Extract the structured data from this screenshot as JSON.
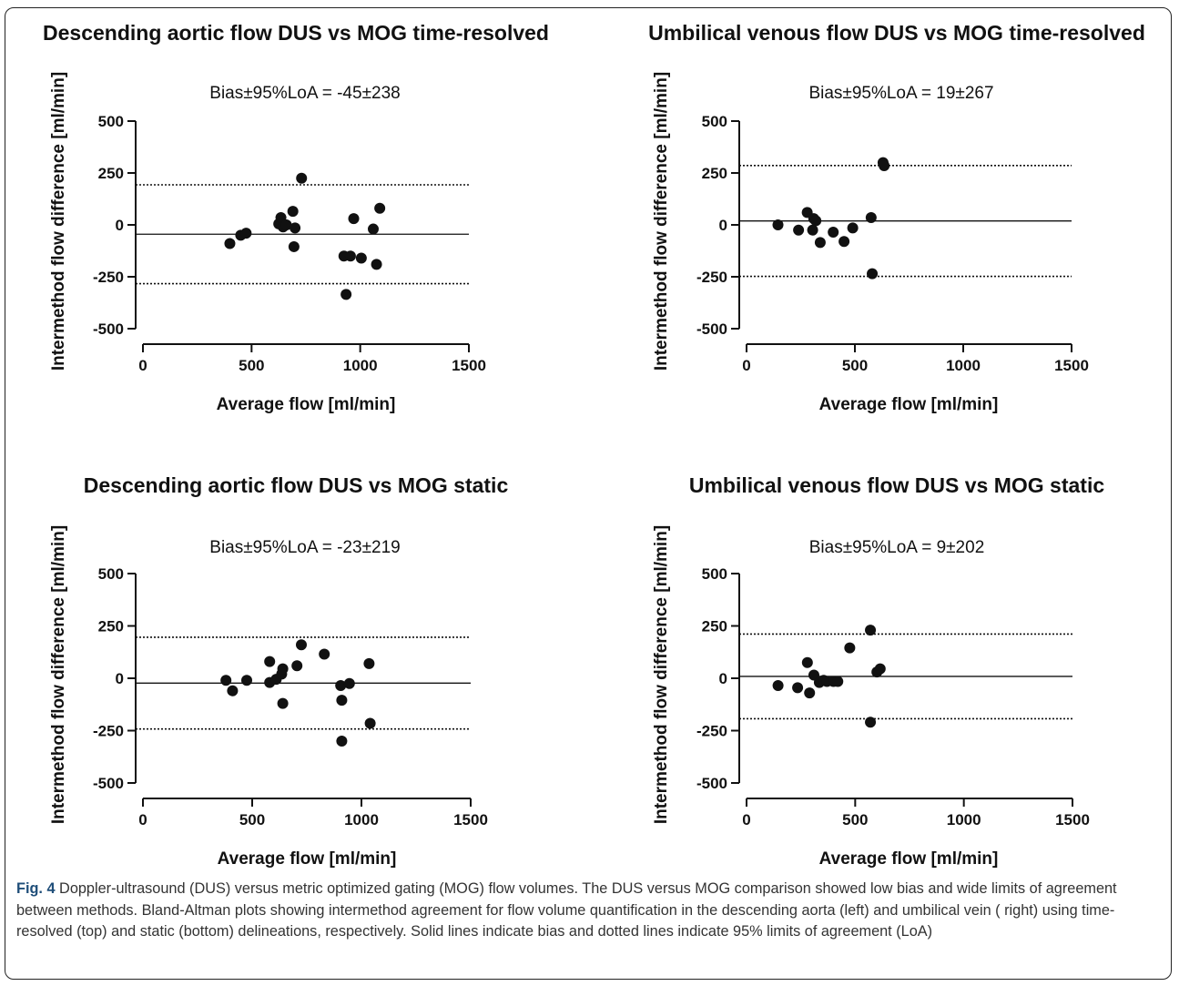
{
  "chart_data": [
    {
      "type": "scatter",
      "title": "Descending aortic flow DUS vs MOG time-resolved",
      "annotation": "Bias±95%LoA = -45±238",
      "xlabel": "Average flow [ml/min]",
      "ylabel": "Intermethod flow difference [ml/min]",
      "xlim": [
        0,
        1500
      ],
      "ylim": [
        -500,
        500
      ],
      "xticks": [
        "0",
        "500",
        "1000",
        "1500"
      ],
      "yticks": [
        "500",
        "250",
        "0",
        "-250",
        "-500"
      ],
      "bias": -45,
      "loa_upper": 193,
      "loa_lower": -283,
      "points": [
        [
          400,
          -90
        ],
        [
          450,
          -50
        ],
        [
          475,
          -40
        ],
        [
          625,
          5
        ],
        [
          635,
          35
        ],
        [
          645,
          -10
        ],
        [
          660,
          0
        ],
        [
          690,
          65
        ],
        [
          695,
          -105
        ],
        [
          700,
          -15
        ],
        [
          730,
          225
        ],
        [
          925,
          -150
        ],
        [
          935,
          -335
        ],
        [
          955,
          -150
        ],
        [
          970,
          30
        ],
        [
          1005,
          -160
        ],
        [
          1060,
          -20
        ],
        [
          1075,
          -190
        ],
        [
          1090,
          80
        ]
      ]
    },
    {
      "type": "scatter",
      "title": "Umbilical venous flow DUS vs MOG time-resolved",
      "annotation": "Bias±95%LoA = 19±267",
      "xlabel": "Average flow [ml/min]",
      "ylabel": "Intermethod flow difference [ml/min]",
      "xlim": [
        0,
        1500
      ],
      "ylim": [
        -500,
        500
      ],
      "xticks": [
        "0",
        "500",
        "1000",
        "1500"
      ],
      "yticks": [
        "500",
        "250",
        "0",
        "-250",
        "-500"
      ],
      "bias": 19,
      "loa_upper": 286,
      "loa_lower": -248,
      "points": [
        [
          145,
          0
        ],
        [
          240,
          -25
        ],
        [
          280,
          60
        ],
        [
          305,
          -25
        ],
        [
          310,
          30
        ],
        [
          320,
          20
        ],
        [
          340,
          -85
        ],
        [
          400,
          -35
        ],
        [
          450,
          -80
        ],
        [
          490,
          -15
        ],
        [
          575,
          35
        ],
        [
          580,
          -235
        ],
        [
          630,
          300
        ],
        [
          635,
          285
        ]
      ]
    },
    {
      "type": "scatter",
      "title": "Descending aortic flow DUS vs MOG static",
      "annotation": "Bias±95%LoA = -23±219",
      "xlabel": "Average flow [ml/min]",
      "ylabel": "Intermethod flow difference [ml/min]",
      "xlim": [
        0,
        1500
      ],
      "ylim": [
        -500,
        500
      ],
      "xticks": [
        "0",
        "500",
        "1000",
        "1500"
      ],
      "yticks": [
        "500",
        "250",
        "0",
        "-250",
        "-500"
      ],
      "bias": -23,
      "loa_upper": 196,
      "loa_lower": -242,
      "points": [
        [
          380,
          -10
        ],
        [
          410,
          -60
        ],
        [
          475,
          -10
        ],
        [
          580,
          80
        ],
        [
          580,
          -20
        ],
        [
          610,
          -5
        ],
        [
          635,
          20
        ],
        [
          640,
          45
        ],
        [
          640,
          -120
        ],
        [
          705,
          60
        ],
        [
          725,
          160
        ],
        [
          830,
          115
        ],
        [
          905,
          -35
        ],
        [
          910,
          -105
        ],
        [
          910,
          -300
        ],
        [
          945,
          -25
        ],
        [
          1035,
          70
        ],
        [
          1040,
          -215
        ]
      ]
    },
    {
      "type": "scatter",
      "title": "Umbilical venous flow DUS vs MOG static",
      "annotation": "Bias±95%LoA = 9±202",
      "xlabel": "Average flow [ml/min]",
      "ylabel": "Intermethod flow difference [ml/min]",
      "xlim": [
        0,
        1500
      ],
      "ylim": [
        -500,
        500
      ],
      "xticks": [
        "0",
        "500",
        "1000",
        "1500"
      ],
      "yticks": [
        "500",
        "250",
        "0",
        "-250",
        "-500"
      ],
      "bias": 9,
      "loa_upper": 211,
      "loa_lower": -193,
      "points": [
        [
          145,
          -35
        ],
        [
          235,
          -45
        ],
        [
          280,
          75
        ],
        [
          290,
          -70
        ],
        [
          310,
          15
        ],
        [
          335,
          -20
        ],
        [
          355,
          -10
        ],
        [
          370,
          -15
        ],
        [
          400,
          -15
        ],
        [
          420,
          -15
        ],
        [
          475,
          145
        ],
        [
          570,
          230
        ],
        [
          570,
          -210
        ],
        [
          600,
          30
        ],
        [
          615,
          45
        ]
      ]
    }
  ],
  "caption": {
    "label": "Fig. 4",
    "text": " Doppler-ultrasound (DUS) versus metric optimized gating (MOG) flow volumes. The DUS versus MOG comparison showed low bias and wide limits of agreement between methods. Bland-Altman plots showing intermethod agreement for flow volume quantification in the descending aorta (left) and umbilical vein ( right) using time-resolved (top) and static (bottom) delineations, respectively. Solid lines indicate bias and dotted lines indicate 95% limits of agreement (LoA)"
  }
}
